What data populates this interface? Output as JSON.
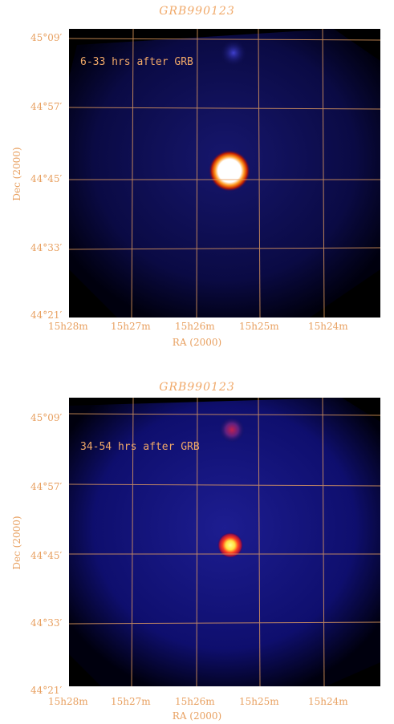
{
  "panels": [
    {
      "title": "GRB990123",
      "annotation": "6-33 hrs after GRB",
      "yticks": [
        "45°09′",
        "44°57′",
        "44°45′",
        "44°33′",
        "44°21′"
      ],
      "xticks": [
        "15h28m",
        "15h27m",
        "15h26m",
        "15h25m",
        "15h24m"
      ],
      "xlabel": "RA (2000)",
      "ylabel": "Dec (2000)"
    },
    {
      "title": "GRB990123",
      "annotation": "34-54 hrs after GRB",
      "yticks": [
        "45°09′",
        "44°57′",
        "44°45′",
        "44°33′",
        "44°21′"
      ],
      "xticks": [
        "15h28m",
        "15h27m",
        "15h26m",
        "15h25m",
        "15h24m"
      ],
      "xlabel": "RA (2000)",
      "ylabel": "Dec (2000)"
    }
  ],
  "colors": {
    "grid": "#e8a060",
    "background": "#000000",
    "sky": "#10105a",
    "source_hot": "#ffffff",
    "source_ring": "#ff8800"
  }
}
